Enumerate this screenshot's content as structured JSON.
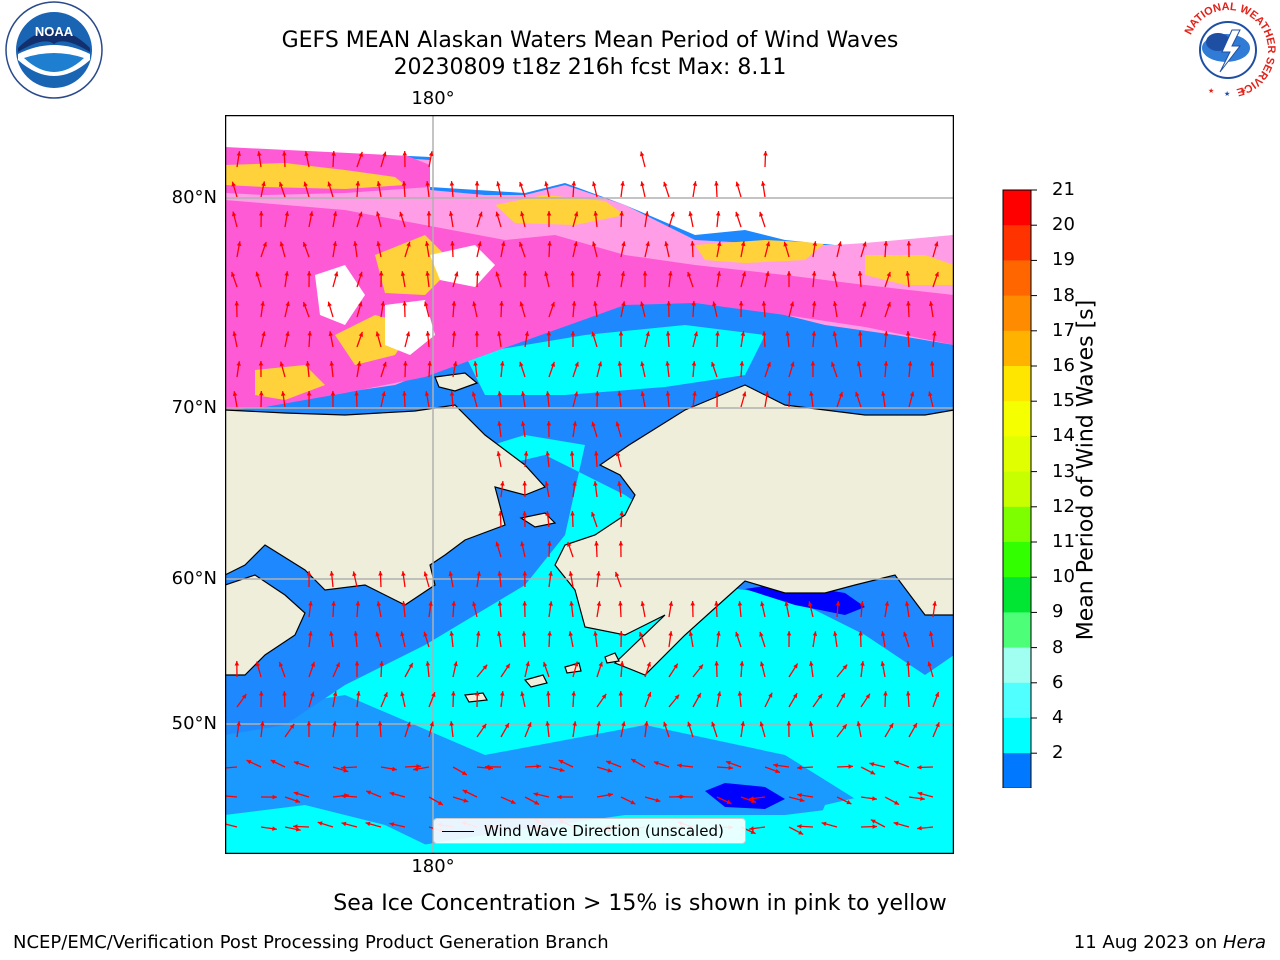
{
  "title": {
    "line1": "GEFS MEAN Alaskan Waters Mean Period of Wind Waves",
    "line2": "20230809 t18z 216h fcst   Max: 8.11"
  },
  "logos": {
    "noaa": {
      "text": "NOAA",
      "ring_text": "NATIONAL OCEANIC AND ATMOSPHERIC ADMINISTRATION · U.S. DEPARTMENT OF COMMERCE ·"
    },
    "nws": {
      "ring_text": "NATIONAL WEATHER SERVICE"
    }
  },
  "map": {
    "lat_labels": [
      "80°N",
      "70°N",
      "60°N",
      "50°N"
    ],
    "lon_labels": {
      "top": "180°",
      "bottom": "180°"
    },
    "legend": "Wind Wave Direction (unscaled)",
    "colors": {
      "land": "#efeedb",
      "ocean_2_4": "#1e88ff",
      "ocean_4_6": "#00ffff",
      "ocean_lt2": "#0000ff",
      "ice_low": "#ff5ad6",
      "ice_mid": "#ff9ee6",
      "ice_high": "#ffd23c",
      "arrow": "#ff0000",
      "grid": "#b0b0b0"
    }
  },
  "colorbar": {
    "label": "Mean Period of Wind Waves [s]",
    "ticks": [
      "21",
      "20",
      "19",
      "18",
      "17",
      "16",
      "15",
      "14",
      "13",
      "12",
      "11",
      "10",
      "9",
      "8",
      "6",
      "4",
      "2"
    ],
    "colors": [
      "#ff0000",
      "#ff3300",
      "#ff6600",
      "#ff8c00",
      "#ffb300",
      "#ffe600",
      "#f5ff00",
      "#e0ff00",
      "#c8ff00",
      "#7dff00",
      "#32ff00",
      "#00e632",
      "#4dff78",
      "#a0fff0",
      "#50ffff",
      "#00ffff",
      "#0078ff"
    ],
    "extend_color": "#0000ff"
  },
  "ice_note": "Sea Ice Concentration > 15% is shown in pink to yellow",
  "footer": {
    "left": "NCEP/EMC/Verification Post Processing Product Generation Branch",
    "date": "11 Aug 2023 on ",
    "host": "Hera"
  }
}
